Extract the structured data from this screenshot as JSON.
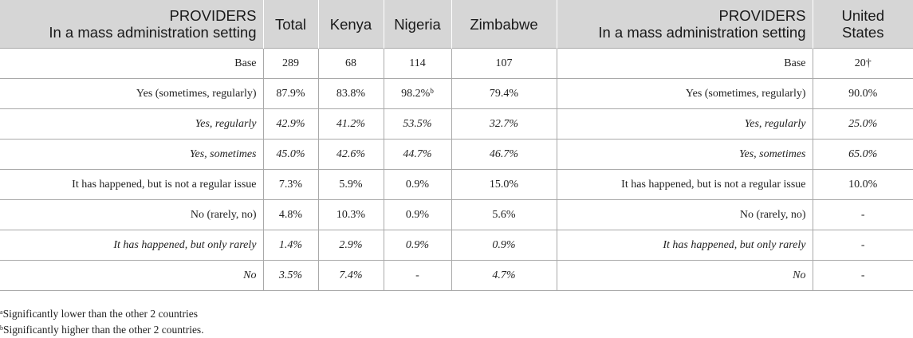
{
  "header": {
    "providers_line1": "PROVIDERS",
    "providers_line2": "In a mass administration setting",
    "total": "Total",
    "kenya": "Kenya",
    "nigeria": "Nigeria",
    "zimbabwe": "Zimbabwe",
    "us_providers_line1": "PROVIDERS",
    "us_providers_line2": "In a mass administration setting",
    "us_line1": "United",
    "us_line2": "States"
  },
  "rows": [
    {
      "label": "Base",
      "total": "289",
      "kenya": "68",
      "nigeria": "114",
      "nigeria_sup": "",
      "zimbabwe": "107",
      "us_label": "Base",
      "us": "20†",
      "italic": false
    },
    {
      "label": "Yes (sometimes, regularly)",
      "total": "87.9%",
      "kenya": "83.8%",
      "nigeria": "98.2%",
      "nigeria_sup": "b",
      "zimbabwe": "79.4%",
      "us_label": "Yes (sometimes, regularly)",
      "us": "90.0%",
      "italic": false
    },
    {
      "label": "Yes, regularly",
      "total": "42.9%",
      "kenya": "41.2%",
      "nigeria": "53.5%",
      "nigeria_sup": "",
      "zimbabwe": "32.7%",
      "us_label": "Yes, regularly",
      "us": "25.0%",
      "italic": true
    },
    {
      "label": "Yes, sometimes",
      "total": "45.0%",
      "kenya": "42.6%",
      "nigeria": "44.7%",
      "nigeria_sup": "",
      "zimbabwe": "46.7%",
      "us_label": "Yes, sometimes",
      "us": "65.0%",
      "italic": true
    },
    {
      "label": "It has happened, but is not a regular issue",
      "total": "7.3%",
      "kenya": "5.9%",
      "nigeria": "0.9%",
      "nigeria_sup": "",
      "zimbabwe": "15.0%",
      "us_label": "It has happened, but is not a regular issue",
      "us": "10.0%",
      "italic": false
    },
    {
      "label": "No (rarely, no)",
      "total": "4.8%",
      "kenya": "10.3%",
      "nigeria": "0.9%",
      "nigeria_sup": "",
      "zimbabwe": "5.6%",
      "us_label": "No (rarely, no)",
      "us": "-",
      "italic": false
    },
    {
      "label": "It has happened, but only rarely",
      "total": "1.4%",
      "kenya": "2.9%",
      "nigeria": "0.9%",
      "nigeria_sup": "",
      "zimbabwe": "0.9%",
      "us_label": "It has happened, but only rarely",
      "us": "-",
      "italic": true
    },
    {
      "label": "No",
      "total": "3.5%",
      "kenya": "7.4%",
      "nigeria": "-",
      "nigeria_sup": "",
      "zimbabwe": "4.7%",
      "us_label": "No",
      "us": "-",
      "italic": true
    }
  ],
  "footnotes": [
    {
      "mark": "a",
      "text": "Significantly lower than the other 2 countries"
    },
    {
      "mark": "b",
      "text": "Significantly higher than the other 2 countries."
    }
  ]
}
